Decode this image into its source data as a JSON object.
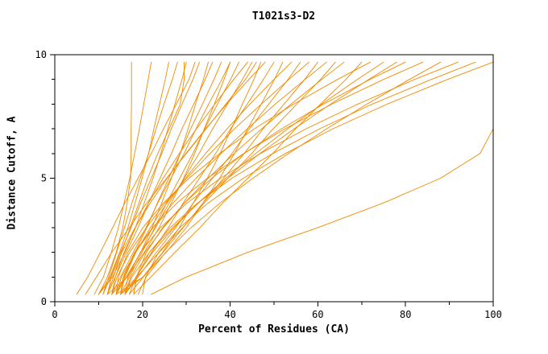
{
  "chart_data": {
    "type": "line",
    "title": "T1021s3-D2",
    "xlabel": "Percent of Residues (CA)",
    "ylabel": "Distance Cutoff, A",
    "xlim": [
      0,
      100
    ],
    "ylim": [
      0,
      10
    ],
    "x_major_ticks": [
      0,
      20,
      40,
      60,
      80,
      100
    ],
    "x_minor_ticks": [
      10,
      30,
      50,
      70,
      90
    ],
    "y_major_ticks": [
      0,
      5,
      10
    ],
    "y_minor_ticks": [
      1,
      2,
      3,
      4,
      6,
      7,
      8,
      9
    ],
    "grid": "off",
    "legend": "none",
    "line_color": "#f08a00",
    "axis_color": "#000000",
    "y_grid": [
      0.3,
      1,
      2,
      3,
      4,
      5,
      6,
      7,
      8,
      9,
      9.7
    ],
    "series": [
      {
        "x": [
          10,
          12,
          14,
          15.5,
          16.5,
          17.3,
          17.4,
          17.4,
          17.5,
          17.5,
          17.5
        ]
      },
      {
        "x": [
          9,
          11.1,
          12.9,
          14.5,
          15.8,
          17.1,
          18.2,
          19.3,
          20.3,
          21.3,
          22
        ]
      },
      {
        "x": [
          10,
          12.6,
          14.8,
          16.7,
          18.3,
          19.9,
          21.4,
          22.6,
          23.9,
          25.2,
          26
        ]
      },
      {
        "x": [
          11,
          12.3,
          14.1,
          15.9,
          17.6,
          19.5,
          21.4,
          23.1,
          24.9,
          26.8,
          28
        ]
      },
      {
        "x": [
          10,
          13.2,
          16,
          18.4,
          20.4,
          22.4,
          24.2,
          25.8,
          27.4,
          29,
          30
        ]
      },
      {
        "x": [
          12,
          13.4,
          15.2,
          17.2,
          19.2,
          21.2,
          23.5,
          26.1,
          28.6,
          29.5,
          29.5
        ]
      },
      {
        "x": [
          11,
          12.7,
          15,
          17.4,
          19.6,
          22,
          24.4,
          26.6,
          29,
          31.5,
          33
        ]
      },
      {
        "x": [
          13,
          16.5,
          19.6,
          22.2,
          24.4,
          26.6,
          28.6,
          30.4,
          32.1,
          33.9,
          35
        ]
      },
      {
        "x": [
          12,
          13.8,
          16.3,
          19,
          21.4,
          24,
          26.6,
          29,
          31.7,
          34.3,
          36
        ]
      },
      {
        "x": [
          14,
          15.8,
          18.3,
          21,
          23.4,
          26,
          28.6,
          31,
          33.7,
          36.3,
          38
        ]
      },
      {
        "x": [
          12,
          16.5,
          20.4,
          23.8,
          26.6,
          29.4,
          31.9,
          34.1,
          36.4,
          38.6,
          40
        ]
      },
      {
        "x": [
          13,
          15,
          17.9,
          20.8,
          23.5,
          26.5,
          29.5,
          32.2,
          35.1,
          38.1,
          40
        ]
      },
      {
        "x": [
          15,
          17,
          19.9,
          22.8,
          25.5,
          28.5,
          31.5,
          34.2,
          37.1,
          40.1,
          42
        ]
      },
      {
        "x": [
          13,
          13.8,
          15.8,
          18.4,
          21.4,
          24.7,
          28.4,
          32.3,
          36.5,
          40.8,
          44
        ]
      },
      {
        "x": [
          14,
          16.3,
          19.6,
          23,
          26.1,
          29.5,
          32.9,
          36,
          39.4,
          42.8,
          45
        ]
      },
      {
        "x": [
          15,
          20.1,
          24.6,
          28.4,
          31.6,
          34.8,
          37.7,
          40.3,
          42.8,
          45.4,
          47
        ]
      },
      {
        "x": [
          12,
          12.9,
          15.3,
          18.3,
          21.8,
          25.6,
          29.9,
          34.4,
          39.2,
          44.3,
          48
        ]
      },
      {
        "x": [
          16,
          18.6,
          22.1,
          25.9,
          29.3,
          33,
          36.7,
          40.1,
          43.9,
          47.6,
          50
        ]
      },
      {
        "x": [
          14,
          20.1,
          25.4,
          30,
          33.8,
          37.6,
          41,
          44,
          47.1,
          50.1,
          52
        ]
      },
      {
        "x": [
          15,
          16,
          18.5,
          21.8,
          25.6,
          29.8,
          34.4,
          39.3,
          44.5,
          50,
          54
        ]
      },
      {
        "x": [
          16,
          19,
          23.2,
          27.6,
          31.6,
          36,
          40.4,
          44.4,
          48.8,
          53.2,
          56
        ]
      },
      {
        "x": [
          13,
          14.2,
          17.1,
          20.9,
          25.2,
          30.1,
          35.4,
          41,
          47.1,
          53.4,
          58
        ]
      },
      {
        "x": [
          17,
          20.2,
          24.7,
          29.3,
          33.8,
          38.5,
          43.2,
          47.5,
          52.3,
          57,
          60
        ]
      },
      {
        "x": [
          14,
          15.2,
          18.4,
          22.4,
          27,
          32.2,
          37.9,
          43.9,
          50.3,
          57.1,
          62
        ]
      },
      {
        "x": [
          15,
          18.7,
          23.8,
          29.2,
          34.1,
          39.5,
          44.9,
          49.8,
          55.2,
          60.6,
          64
        ]
      },
      {
        "x": [
          16,
          17.3,
          20.6,
          24.8,
          29.6,
          35,
          40.9,
          47.2,
          53.9,
          60.9,
          66
        ]
      },
      {
        "x": [
          18,
          21.9,
          27.4,
          33.1,
          38.3,
          44,
          49.7,
          54.9,
          60.6,
          66.4,
          70
        ]
      },
      {
        "x": [
          14,
          14.5,
          16.7,
          20.1,
          24.8,
          30.6,
          37.6,
          45.5,
          54.5,
          64.5,
          72
        ]
      },
      {
        "x": [
          17,
          18.5,
          22.3,
          27.2,
          32.7,
          39,
          45.8,
          53.1,
          60.9,
          69,
          75
        ]
      },
      {
        "x": [
          16,
          17.6,
          21.6,
          26.9,
          32.8,
          39.5,
          46.8,
          54.6,
          62.9,
          71.6,
          78
        ]
      },
      {
        "x": [
          18,
          18.6,
          20.9,
          24.6,
          29.6,
          35.8,
          43.2,
          51.7,
          61.3,
          71.9,
          80
        ]
      },
      {
        "x": [
          15,
          15.6,
          18.2,
          22.3,
          27.9,
          34.8,
          43.1,
          52.5,
          63.2,
          75,
          84
        ]
      },
      {
        "x": [
          19,
          20.8,
          25.3,
          31.1,
          37.7,
          45.2,
          53.3,
          62,
          71.2,
          80.9,
          88
        ]
      },
      {
        "x": [
          16,
          16.7,
          19.5,
          24.1,
          30.2,
          37.8,
          46.9,
          57.3,
          69.1,
          82.1,
          92
        ]
      },
      {
        "x": [
          18,
          18.7,
          21.6,
          26.3,
          32.6,
          40.4,
          49.7,
          60.4,
          72.4,
          85.9,
          96
        ]
      },
      {
        "x": [
          20,
          20.7,
          23.7,
          28.5,
          35,
          43,
          52.6,
          63.4,
          75.8,
          89.6,
          100
        ]
      },
      {
        "x": [
          22,
          30,
          44,
          60,
          75,
          88,
          97,
          100,
          100,
          100,
          100
        ]
      },
      {
        "x": [
          5,
          7.5,
          10.4,
          13.2,
          16,
          19,
          22,
          24.8,
          27.7,
          30.6,
          32
        ]
      },
      {
        "x": [
          7,
          9.5,
          13,
          17,
          21,
          25.5,
          30,
          34.5,
          39,
          43.5,
          46
        ]
      }
    ]
  }
}
